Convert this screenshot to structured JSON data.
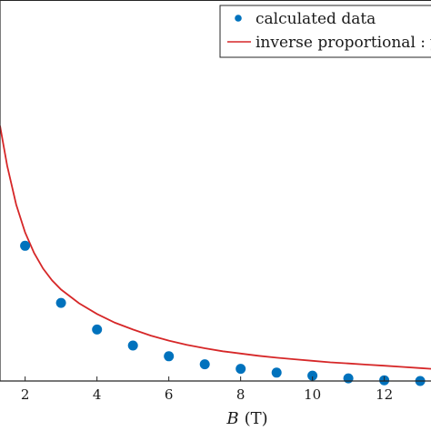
{
  "chart_data": {
    "type": "scatter",
    "xlabel_var": "B",
    "xlabel_unit": "(T)",
    "xticks": [
      2,
      4,
      6,
      8,
      10,
      12
    ],
    "xlim": [
      1.3,
      13.3
    ],
    "ylim": [
      0,
      1
    ],
    "legend_position": "top-right",
    "series": [
      {
        "name": "calculated data",
        "kind": "points",
        "color": "#0072BD",
        "x": [
          2,
          3,
          4,
          5,
          6,
          7,
          8,
          9,
          10,
          11,
          12,
          13
        ],
        "y": [
          0.355,
          0.205,
          0.135,
          0.093,
          0.065,
          0.044,
          0.032,
          0.022,
          0.014,
          0.007,
          0.002,
          0.0
        ]
      },
      {
        "name": "inverse proportional : y",
        "kind": "line",
        "color": "#D62728",
        "x": [
          1.3,
          1.5,
          1.75,
          2,
          2.25,
          2.5,
          2.75,
          3,
          3.5,
          4,
          4.5,
          5,
          5.5,
          6,
          6.5,
          7,
          7.5,
          8,
          8.5,
          9,
          9.5,
          10,
          10.5,
          11,
          11.5,
          12,
          12.5,
          13,
          13.3
        ],
        "y": [
          0.67,
          0.565,
          0.463,
          0.39,
          0.336,
          0.295,
          0.264,
          0.24,
          0.204,
          0.176,
          0.153,
          0.135,
          0.119,
          0.106,
          0.095,
          0.086,
          0.078,
          0.072,
          0.066,
          0.061,
          0.057,
          0.053,
          0.049,
          0.046,
          0.043,
          0.04,
          0.037,
          0.034,
          0.032
        ]
      }
    ]
  }
}
